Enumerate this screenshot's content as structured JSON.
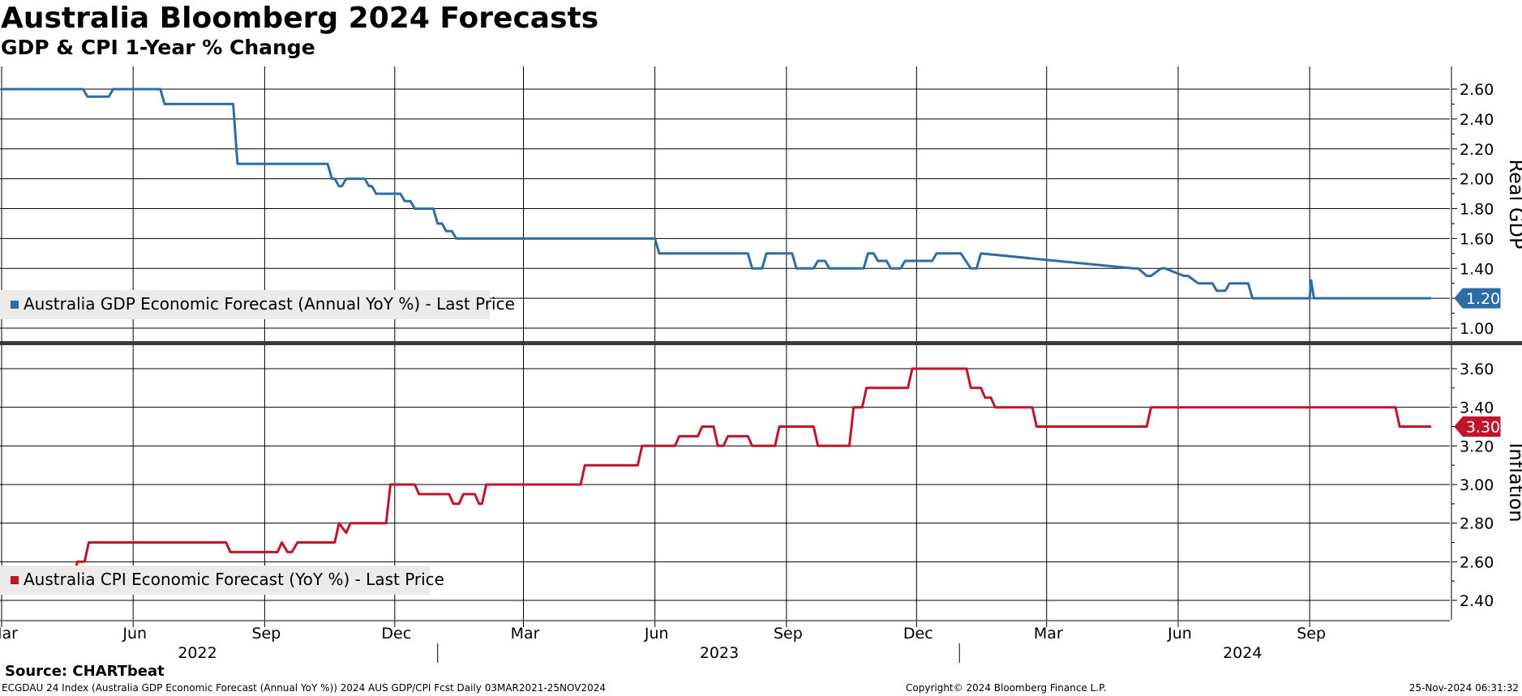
{
  "header": {
    "title": "Australia Bloomberg 2024 Forecasts",
    "subtitle": "GDP & CPI 1-Year % Change"
  },
  "footer": {
    "source": "Source: CHARTbeat",
    "ticker_info": "ECGDAU 24 Index (Australia GDP Economic Forecast (Annual YoY %)) 2024 AUS GDP/CPI Fcst  Daily 03MAR2021-25NOV2024",
    "copyright": "Copyright© 2024 Bloomberg Finance L.P.",
    "timestamp": "25-Nov-2024 06:31:32"
  },
  "colors": {
    "gdp": "#2e6da4",
    "cpi": "#c0142c",
    "grid": "#000000",
    "divider": "#3a3a3a",
    "legend_bg": "#ebebeb"
  },
  "x_axis": {
    "months": [
      {
        "label": "Mar",
        "date": "2022-03-01"
      },
      {
        "label": "Jun",
        "date": "2022-06-01"
      },
      {
        "label": "Sep",
        "date": "2022-09-01"
      },
      {
        "label": "Dec",
        "date": "2022-12-01"
      },
      {
        "label": "Mar",
        "date": "2023-03-01"
      },
      {
        "label": "Jun",
        "date": "2023-06-01"
      },
      {
        "label": "Sep",
        "date": "2023-09-01"
      },
      {
        "label": "Dec",
        "date": "2023-12-01"
      },
      {
        "label": "Mar",
        "date": "2024-03-01"
      },
      {
        "label": "Jun",
        "date": "2024-06-01"
      },
      {
        "label": "Sep",
        "date": "2024-09-01"
      }
    ],
    "years": [
      {
        "label": "2022",
        "date": "2022-07-16"
      },
      {
        "label": "2023",
        "date": "2023-07-16"
      },
      {
        "label": "2024",
        "date": "2024-07-16"
      }
    ],
    "year_separators": [
      "2022-12-31",
      "2023-12-31"
    ]
  },
  "chart_data": [
    {
      "type": "line",
      "panel": "top",
      "axis_title": "Real GDP",
      "ylim": [
        0.95,
        2.7
      ],
      "yticks": [
        1.0,
        1.2,
        1.4,
        1.6,
        1.8,
        2.0,
        2.2,
        2.4,
        2.6
      ],
      "last_value_label": "1.20",
      "series": [
        {
          "name": "Australia GDP Economic Forecast (Annual YoY %) - Last Price",
          "x": [
            "2022-03-01",
            "2022-04-01",
            "2022-04-04",
            "2022-04-27",
            "2022-04-30",
            "2022-05-15",
            "2022-05-18",
            "2022-06-20",
            "2022-06-23",
            "2022-08-10",
            "2022-08-13",
            "2022-10-15",
            "2022-10-18",
            "2022-10-20",
            "2022-10-23",
            "2022-10-25",
            "2022-10-28",
            "2022-11-10",
            "2022-11-13",
            "2022-11-15",
            "2022-11-18",
            "2022-12-05",
            "2022-12-08",
            "2022-12-12",
            "2022-12-15",
            "2022-12-28",
            "2022-12-31",
            "2023-01-03",
            "2023-01-06",
            "2023-01-10",
            "2023-01-13",
            "2023-06-01",
            "2023-06-04",
            "2023-08-05",
            "2023-08-08",
            "2023-08-15",
            "2023-08-18",
            "2023-09-05",
            "2023-09-08",
            "2023-09-20",
            "2023-09-23",
            "2023-09-28",
            "2023-10-01",
            "2023-10-25",
            "2023-10-28",
            "2023-11-01",
            "2023-11-04",
            "2023-11-10",
            "2023-11-13",
            "2023-11-20",
            "2023-11-23",
            "2023-12-12",
            "2023-12-15",
            "2024-01-01",
            "2024-01-08",
            "2024-01-12",
            "2024-01-15",
            "2024-05-01",
            "2024-05-04",
            "2024-05-10",
            "2024-05-13",
            "2024-05-20",
            "2024-05-23",
            "2024-06-05",
            "2024-06-08",
            "2024-06-15",
            "2024-06-18",
            "2024-06-25",
            "2024-06-28",
            "2024-07-04",
            "2024-07-07",
            "2024-07-20",
            "2024-07-23",
            "2024-07-28",
            "2024-07-31",
            "2024-09-01",
            "2024-09-02",
            "2024-09-04",
            "2024-11-25"
          ],
          "y": [
            2.6,
            2.6,
            2.6,
            2.6,
            2.55,
            2.55,
            2.6,
            2.6,
            2.5,
            2.5,
            2.1,
            2.1,
            2.0,
            2.0,
            1.95,
            1.95,
            2.0,
            2.0,
            1.95,
            1.95,
            1.9,
            1.9,
            1.85,
            1.85,
            1.8,
            1.8,
            1.7,
            1.7,
            1.65,
            1.65,
            1.6,
            1.6,
            1.5,
            1.5,
            1.4,
            1.4,
            1.5,
            1.5,
            1.4,
            1.4,
            1.45,
            1.45,
            1.4,
            1.4,
            1.5,
            1.5,
            1.45,
            1.45,
            1.4,
            1.4,
            1.45,
            1.45,
            1.5,
            1.5,
            1.4,
            1.4,
            1.5,
            1.4,
            1.4,
            1.35,
            1.35,
            1.4,
            1.4,
            1.35,
            1.35,
            1.3,
            1.3,
            1.3,
            1.25,
            1.25,
            1.3,
            1.3,
            1.2,
            1.2,
            1.2,
            1.2,
            1.32,
            1.2,
            1.2
          ]
        }
      ]
    },
    {
      "type": "line",
      "panel": "bottom",
      "axis_title": "Inflation",
      "ylim": [
        2.32,
        3.67
      ],
      "yticks": [
        2.4,
        2.6,
        2.8,
        3.0,
        3.2,
        3.4,
        3.6
      ],
      "last_value_label": "3.30",
      "series": [
        {
          "name": "Australia CPI Economic Forecast (YoY %) - Last Price",
          "x": [
            "2022-03-01",
            "2022-04-20",
            "2022-04-23",
            "2022-04-28",
            "2022-05-01",
            "2022-05-08",
            "2022-08-05",
            "2022-08-08",
            "2022-09-10",
            "2022-09-13",
            "2022-09-17",
            "2022-09-20",
            "2022-09-24",
            "2022-10-20",
            "2022-10-23",
            "2022-10-28",
            "2022-10-31",
            "2022-11-25",
            "2022-11-28",
            "2022-12-15",
            "2022-12-18",
            "2023-01-08",
            "2023-01-11",
            "2023-01-15",
            "2023-01-18",
            "2023-01-26",
            "2023-01-29",
            "2023-01-31",
            "2023-02-03",
            "2023-04-10",
            "2023-04-13",
            "2023-05-20",
            "2023-05-23",
            "2023-06-15",
            "2023-06-18",
            "2023-07-01",
            "2023-07-04",
            "2023-07-12",
            "2023-07-15",
            "2023-07-19",
            "2023-07-22",
            "2023-08-05",
            "2023-08-08",
            "2023-08-24",
            "2023-08-27",
            "2023-09-20",
            "2023-09-23",
            "2023-10-15",
            "2023-10-18",
            "2023-10-24",
            "2023-10-27",
            "2023-11-25",
            "2023-11-28",
            "2024-01-05",
            "2024-01-08",
            "2024-01-15",
            "2024-01-18",
            "2024-01-22",
            "2024-01-25",
            "2024-02-20",
            "2024-02-23",
            "2024-05-10",
            "2024-05-13",
            "2024-10-31",
            "2024-11-03",
            "2024-11-25"
          ],
          "y": [
            2.5,
            2.5,
            2.6,
            2.6,
            2.7,
            2.7,
            2.7,
            2.65,
            2.65,
            2.7,
            2.65,
            2.65,
            2.7,
            2.7,
            2.8,
            2.75,
            2.8,
            2.8,
            3.0,
            3.0,
            2.95,
            2.95,
            2.9,
            2.9,
            2.95,
            2.95,
            2.9,
            2.9,
            3.0,
            3.0,
            3.1,
            3.1,
            3.2,
            3.2,
            3.25,
            3.25,
            3.3,
            3.3,
            3.2,
            3.2,
            3.25,
            3.25,
            3.2,
            3.2,
            3.3,
            3.3,
            3.2,
            3.2,
            3.4,
            3.4,
            3.5,
            3.5,
            3.6,
            3.6,
            3.5,
            3.5,
            3.45,
            3.45,
            3.4,
            3.4,
            3.3,
            3.3,
            3.4,
            3.4,
            3.3,
            3.3
          ]
        }
      ]
    }
  ]
}
